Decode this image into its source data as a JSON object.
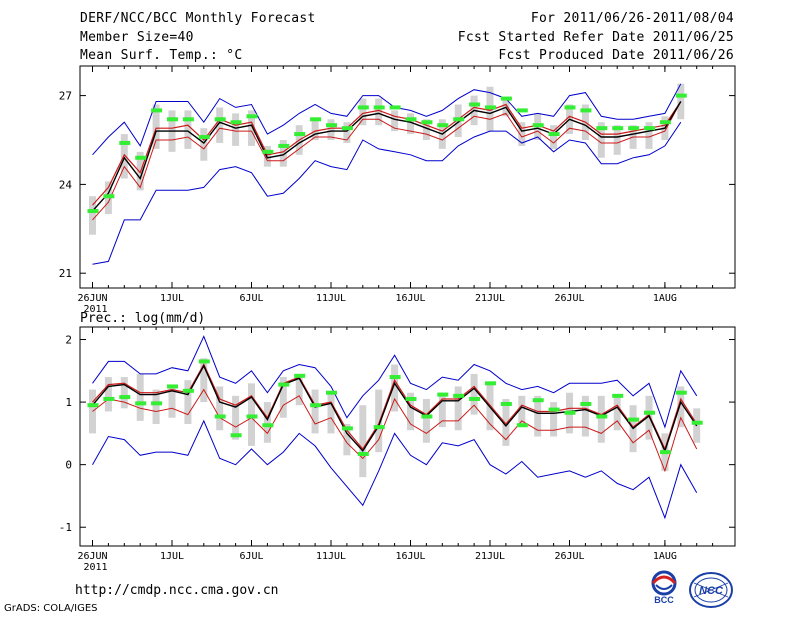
{
  "header": {
    "left": [
      "DERF/NCC/BCC Monthly Forecast",
      "Member Size=40",
      "Mean Surf. Temp.: °C"
    ],
    "right": [
      "For 2011/06/26-2011/08/04",
      "Fcst Started Refer Date 2011/06/25",
      "Fcst Produced Date 2011/06/26"
    ]
  },
  "footer": {
    "url": "http://cmdp.ncc.cma.gov.cn",
    "grads": "GrADS: COLA/IGES"
  },
  "logos": {
    "bcc_text": "BCC",
    "ncc_text": "NCC"
  },
  "colors": {
    "ens_mean": "#cc1a1a",
    "median": "#000000",
    "spread": "#0000cc",
    "box": "#d2d2d2",
    "obs": "#33ee33"
  },
  "chart_data": [
    {
      "type": "line",
      "title": "Mean Surf. Temp.: °C",
      "x_tick_labels": [
        "26JUN",
        "1JUL",
        "6JUL",
        "11JUL",
        "16JUL",
        "21JUL",
        "26JUL",
        "1AUG"
      ],
      "x_tick_days": [
        0,
        5,
        10,
        15,
        20,
        25,
        30,
        36
      ],
      "x_sub_label": "2011",
      "y_ticks": [
        21,
        24,
        27
      ],
      "ylim": [
        20.5,
        28
      ],
      "series": [
        {
          "name": "upper",
          "values": [
            25,
            25.6,
            26.1,
            25.3,
            26.8,
            26.8,
            26.8,
            26.1,
            26.9,
            26.6,
            26.7,
            25.7,
            26,
            26.4,
            26.7,
            26.4,
            26.3,
            27,
            27,
            26.6,
            26.5,
            26.3,
            26.5,
            26.9,
            27.2,
            27.1,
            26.9,
            26.3,
            26.4,
            26.3,
            27,
            27.1,
            26.3,
            26.2,
            26.2,
            26.3,
            26.4,
            27.4
          ]
        },
        {
          "name": "box_top",
          "values": [
            23.6,
            24.1,
            25.7,
            25.1,
            26.7,
            26.5,
            26.5,
            25.9,
            26.6,
            26.4,
            26.5,
            25.3,
            25.5,
            26,
            26.2,
            26.2,
            26.1,
            26.9,
            26.9,
            26.5,
            26.4,
            26.2,
            26.2,
            26.7,
            27,
            27.3,
            26.9,
            26.1,
            26.4,
            26,
            26.7,
            26.7,
            26.1,
            26,
            26,
            26.1,
            26.3,
            27.4
          ]
        },
        {
          "name": "mean",
          "values": [
            23.3,
            23.9,
            25,
            24.4,
            25.9,
            25.9,
            26,
            25.5,
            26.2,
            26,
            26.1,
            25,
            25.1,
            25.5,
            25.8,
            25.9,
            25.9,
            26.4,
            26.5,
            26.3,
            26.2,
            26,
            25.8,
            26.2,
            26.6,
            26.5,
            26.7,
            25.9,
            26,
            25.8,
            26.3,
            26.1,
            25.7,
            25.7,
            25.8,
            25.9,
            26,
            26.8
          ]
        },
        {
          "name": "median",
          "values": [
            23.1,
            23.7,
            24.9,
            24.2,
            25.8,
            25.8,
            25.8,
            25.4,
            26.1,
            25.9,
            26,
            24.9,
            25,
            25.4,
            25.7,
            25.8,
            25.8,
            26.3,
            26.4,
            26.2,
            26.1,
            25.9,
            25.7,
            26.1,
            26.5,
            26.4,
            26.6,
            25.8,
            25.9,
            25.7,
            26.2,
            26,
            25.6,
            25.6,
            25.7,
            25.8,
            25.9,
            26.8
          ]
        },
        {
          "name": "ens_mean",
          "values": [
            22.8,
            23.4,
            24.6,
            23.9,
            25.5,
            25.5,
            25.6,
            25.2,
            25.9,
            25.8,
            25.8,
            24.8,
            24.8,
            25.2,
            25.6,
            25.6,
            25.5,
            26.2,
            26.2,
            25.9,
            25.8,
            25.7,
            25.5,
            25.9,
            26.3,
            26.2,
            26.4,
            25.6,
            25.8,
            25.4,
            25.9,
            25.8,
            25.4,
            25.4,
            25.6,
            25.6,
            25.8,
            26.8
          ]
        },
        {
          "name": "box_bottom",
          "values": [
            22.3,
            23,
            24.2,
            23.8,
            25.2,
            25.1,
            25.2,
            24.8,
            25.4,
            25.3,
            25.3,
            24.6,
            24.6,
            25,
            25.5,
            25.5,
            25.4,
            26,
            26,
            25.8,
            25.7,
            25.5,
            25.2,
            25.6,
            26,
            25.8,
            26.3,
            25.3,
            25.5,
            25.2,
            25.7,
            25.5,
            24.9,
            25,
            25.2,
            25.2,
            25.5,
            26.2
          ]
        },
        {
          "name": "lower",
          "values": [
            21.3,
            21.4,
            22.8,
            22.8,
            23.8,
            23.8,
            23.8,
            23.9,
            24.5,
            24.6,
            24.4,
            23.6,
            23.7,
            24.2,
            24.8,
            24.6,
            24.5,
            25.5,
            25.2,
            25.1,
            25,
            24.8,
            24.8,
            25.3,
            25.6,
            25.8,
            25.8,
            25.4,
            25.6,
            25.1,
            25.5,
            25.4,
            24.7,
            24.7,
            24.9,
            25,
            25.3,
            26.1
          ]
        },
        {
          "name": "obs",
          "values": [
            23.1,
            23.6,
            25.4,
            24.9,
            26.5,
            26.2,
            26.2,
            25.6,
            26.2,
            26.1,
            26.3,
            25.1,
            25.3,
            25.7,
            26.2,
            26,
            25.9,
            26.6,
            26.6,
            26.6,
            26.2,
            26.1,
            26,
            26.2,
            26.7,
            26.6,
            26.9,
            26.5,
            26,
            25.7,
            26.6,
            26.5,
            25.9,
            25.9,
            25.9,
            25.9,
            26.1,
            27
          ]
        }
      ]
    },
    {
      "type": "line",
      "title": "Prec.: log(mm/d)",
      "x_tick_labels": [
        "26JUN",
        "1JUL",
        "6JUL",
        "11JUL",
        "16JUL",
        "21JUL",
        "26JUL",
        "1AUG"
      ],
      "x_tick_days": [
        0,
        5,
        10,
        15,
        20,
        25,
        30,
        36
      ],
      "x_sub_label": "2011",
      "y_ticks": [
        -1,
        0,
        1,
        2
      ],
      "ylim": [
        -1.3,
        2.2
      ],
      "series": [
        {
          "name": "upper",
          "values": [
            1.3,
            1.65,
            1.65,
            1.45,
            1.45,
            1.55,
            1.5,
            2.05,
            1.4,
            1.3,
            1.5,
            1.15,
            1.5,
            1.6,
            1.55,
            1.25,
            0.75,
            1.1,
            1.35,
            1.75,
            1.3,
            1.2,
            1.4,
            1.35,
            1.6,
            1.5,
            1.3,
            1.2,
            1.25,
            1.15,
            1.3,
            1.3,
            1.3,
            1.35,
            1.1,
            1.3,
            0.6,
            1.5,
            1.1
          ]
        },
        {
          "name": "box_top",
          "values": [
            1.2,
            1.4,
            1.4,
            1.45,
            1.2,
            1.25,
            1.35,
            1.7,
            1.25,
            1.1,
            1.3,
            1.0,
            1.4,
            1.45,
            1.2,
            1.15,
            0.65,
            0.95,
            1.2,
            1.6,
            1.15,
            1.05,
            1.15,
            1.25,
            1.45,
            1.3,
            1.05,
            1.1,
            1.1,
            1.0,
            1.15,
            1.1,
            1.1,
            1.1,
            0.95,
            1.1,
            0.5,
            1.25,
            0.9
          ]
        },
        {
          "name": "mean",
          "values": [
            1.0,
            1.28,
            1.3,
            1.15,
            1.15,
            1.2,
            1.15,
            1.6,
            1.05,
            0.95,
            1.1,
            0.75,
            1.3,
            1.4,
            0.95,
            1.0,
            0.55,
            0.25,
            0.65,
            1.35,
            0.95,
            0.8,
            1.05,
            1.05,
            1.25,
            0.95,
            0.65,
            0.95,
            0.85,
            0.85,
            0.9,
            0.9,
            0.8,
            0.95,
            0.6,
            0.8,
            0.25,
            1.05,
            0.65
          ]
        },
        {
          "name": "median",
          "values": [
            0.95,
            1.25,
            1.28,
            1.12,
            1.12,
            1.18,
            1.12,
            1.58,
            1.0,
            0.92,
            1.08,
            0.72,
            1.28,
            1.38,
            0.92,
            0.98,
            0.5,
            0.22,
            0.62,
            1.3,
            0.92,
            0.78,
            1.02,
            1.02,
            1.22,
            0.92,
            0.62,
            0.92,
            0.82,
            0.82,
            0.85,
            0.88,
            0.78,
            0.92,
            0.58,
            0.78,
            0.22,
            1.0,
            0.62
          ]
        },
        {
          "name": "ens_mean",
          "values": [
            0.85,
            1.05,
            1.0,
            0.9,
            0.85,
            0.9,
            0.8,
            1.2,
            0.75,
            0.6,
            0.75,
            0.5,
            0.95,
            1.1,
            0.65,
            0.75,
            0.35,
            0.1,
            0.4,
            1.05,
            0.65,
            0.5,
            0.7,
            0.7,
            0.95,
            0.65,
            0.4,
            0.7,
            0.55,
            0.55,
            0.6,
            0.6,
            0.5,
            0.7,
            0.35,
            0.55,
            -0.1,
            0.75,
            0.25
          ]
        },
        {
          "name": "box_bottom",
          "values": [
            0.5,
            0.85,
            0.9,
            0.7,
            0.65,
            0.75,
            0.65,
            1.0,
            0.55,
            0.4,
            0.3,
            0.35,
            0.75,
            0.95,
            0.5,
            0.5,
            0.15,
            -0.2,
            0.2,
            0.85,
            0.55,
            0.35,
            0.6,
            0.55,
            0.8,
            0.55,
            0.3,
            0.6,
            0.45,
            0.45,
            0.5,
            0.45,
            0.35,
            0.55,
            0.2,
            0.4,
            -0.1,
            0.6,
            0.35
          ]
        },
        {
          "name": "lower",
          "values": [
            0.0,
            0.45,
            0.4,
            0.15,
            0.2,
            0.2,
            0.15,
            0.7,
            0.1,
            0.0,
            0.25,
            0.0,
            0.2,
            0.5,
            0.3,
            -0.05,
            -0.35,
            -0.65,
            -0.1,
            0.5,
            0.15,
            0.0,
            0.35,
            0.3,
            0.4,
            0.0,
            -0.15,
            0.05,
            -0.2,
            -0.15,
            -0.1,
            -0.2,
            -0.1,
            -0.3,
            -0.4,
            -0.2,
            -0.85,
            0.0,
            -0.45
          ]
        },
        {
          "name": "obs",
          "values": [
            0.95,
            1.05,
            1.08,
            0.98,
            0.98,
            1.25,
            1.18,
            1.65,
            0.77,
            0.47,
            0.77,
            0.63,
            1.28,
            1.42,
            0.95,
            1.15,
            0.58,
            0.17,
            0.6,
            1.4,
            1.05,
            0.77,
            1.12,
            1.1,
            1.05,
            1.3,
            0.97,
            0.63,
            1.03,
            0.88,
            0.83,
            0.97,
            0.77,
            1.1,
            0.72,
            0.83,
            0.2,
            1.15,
            0.67
          ]
        }
      ]
    }
  ]
}
